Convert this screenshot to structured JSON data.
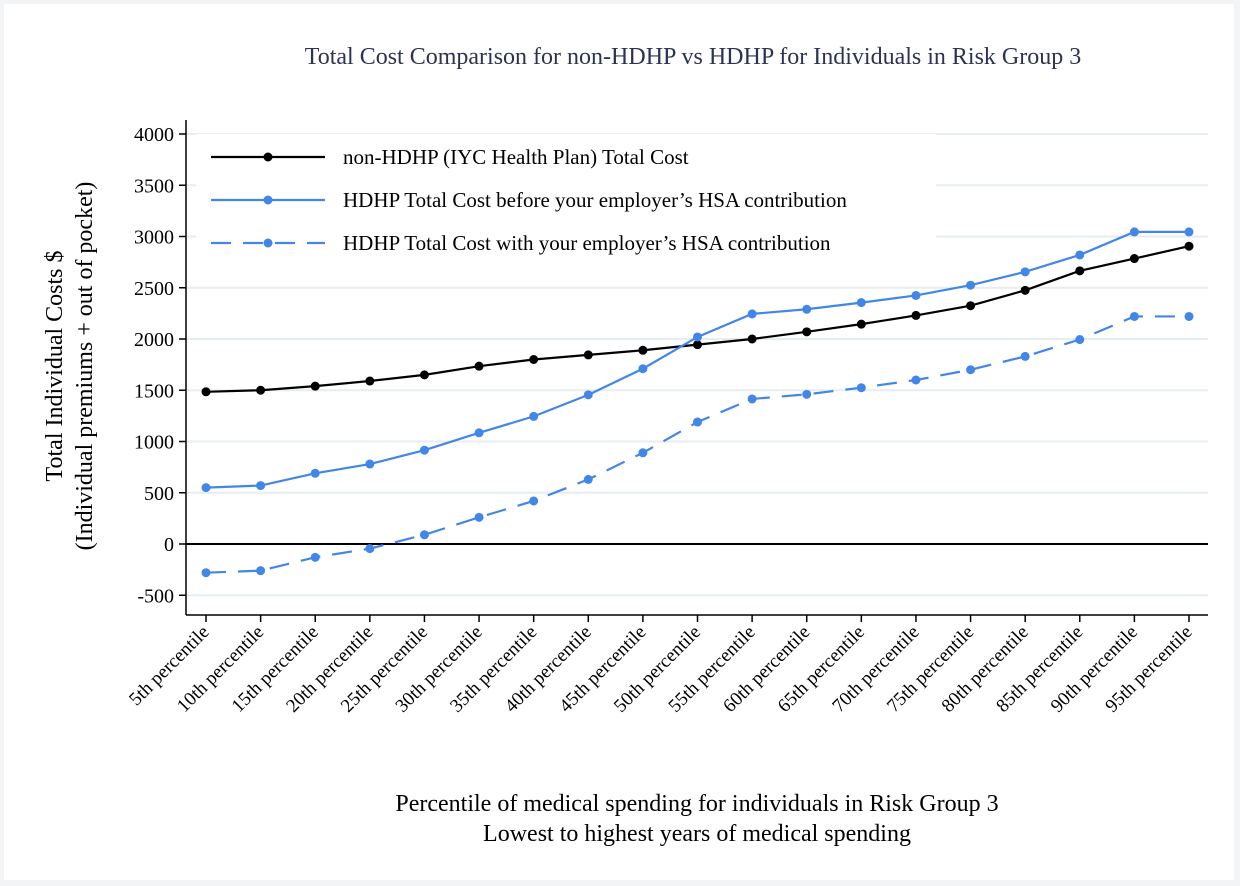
{
  "chart_data": {
    "type": "line",
    "title": "Total Cost Comparison for non-HDHP vs HDHP for Individuals in Risk Group 3",
    "xlabel": [
      "Percentile of medical spending for individuals in Risk Group 3",
      "Lowest to highest years of medical spending"
    ],
    "ylabel": [
      "Total Individual Costs $",
      "(Individual premiums + out of pocket)"
    ],
    "ylim": [
      -500,
      4000
    ],
    "yticks": [
      -500,
      0,
      500,
      1000,
      1500,
      2000,
      2500,
      3000,
      3500,
      4000
    ],
    "grid": true,
    "legend_position": "top-left",
    "categories": [
      "5th percentile",
      "10th percentile",
      "15th percentile",
      "20th percentile",
      "25th percentile",
      "30th percentile",
      "35th percentile",
      "40th percentile",
      "45th percentile",
      "50th percentile",
      "55th percentile",
      "60th percentile",
      "65th percentile",
      "70th percentile",
      "75th percentile",
      "80th percentile",
      "85th percentile",
      "90th percentile",
      "95th percentile"
    ],
    "series": [
      {
        "name": "non-HDHP (IYC Health Plan) Total Cost",
        "color": "#000000",
        "dash": false,
        "values": [
          1485,
          1500,
          1540,
          1590,
          1650,
          1735,
          1800,
          1845,
          1890,
          1945,
          2000,
          2070,
          2145,
          2230,
          2325,
          2475,
          2665,
          2785,
          2905
        ]
      },
      {
        "name": "HDHP Total Cost before your employer’s HSA contribution",
        "color": "#4286e8",
        "dash": false,
        "values": [
          550,
          570,
          690,
          780,
          915,
          1085,
          1245,
          1455,
          1710,
          2020,
          2245,
          2290,
          2355,
          2425,
          2525,
          2655,
          2820,
          3045,
          3045
        ]
      },
      {
        "name": "HDHP Total Cost with your employer’s HSA contribution",
        "color": "#4286e8",
        "dash": true,
        "values": [
          -280,
          -260,
          -130,
          -45,
          90,
          260,
          420,
          630,
          890,
          1190,
          1415,
          1460,
          1525,
          1600,
          1700,
          1830,
          1995,
          2220,
          2220
        ]
      }
    ]
  }
}
